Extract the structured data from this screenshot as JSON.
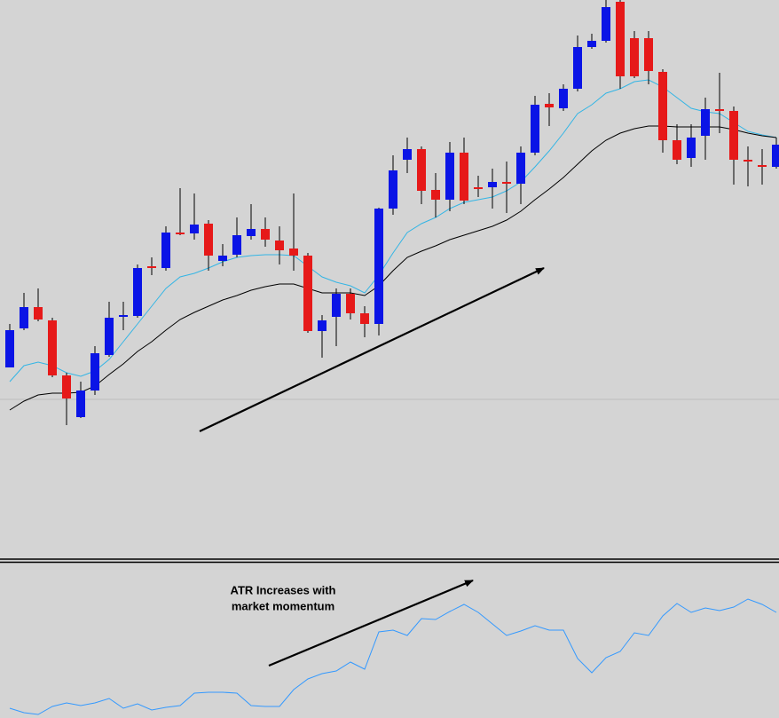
{
  "chart_data": [
    {
      "type": "candlestick",
      "ylim": [
        0,
        630
      ],
      "up_color": "#0a14e6",
      "down_color": "#e61919",
      "wick_color": "#000000",
      "level": 180,
      "level_color": "#bdbdbd",
      "open": [
        216,
        260,
        284,
        269,
        207,
        160,
        190,
        230,
        273,
        274,
        330,
        328,
        368,
        367,
        378,
        336,
        343,
        364,
        372,
        359,
        350,
        342,
        257,
        273,
        299,
        277,
        265,
        395,
        450,
        462,
        416,
        405,
        458,
        419,
        419,
        425,
        423,
        458,
        513,
        508,
        530,
        577,
        584,
        628,
        587,
        587,
        549,
        472,
        452,
        477,
        507,
        505,
        450,
        444,
        442
      ],
      "high": [
        265,
        300,
        305,
        272,
        210,
        200,
        240,
        290,
        290,
        332,
        340,
        375,
        418,
        412,
        382,
        355,
        385,
        400,
        385,
        375,
        412,
        345,
        275,
        305,
        305,
        285,
        396,
        455,
        475,
        465,
        435,
        470,
        475,
        432,
        440,
        448,
        465,
        522,
        525,
        535,
        590,
        592,
        630,
        630,
        595,
        595,
        552,
        490,
        490,
        520,
        548,
        510,
        465,
        462,
        475
      ],
      "low": [
        216,
        258,
        268,
        205,
        151,
        159,
        185,
        228,
        258,
        272,
        320,
        325,
        365,
        360,
        325,
        330,
        340,
        360,
        352,
        332,
        325,
        255,
        227,
        240,
        270,
        250,
        252,
        388,
        435,
        400,
        385,
        392,
        400,
        408,
        395,
        390,
        400,
        455,
        488,
        505,
        527,
        575,
        582,
        530,
        542,
        535,
        458,
        445,
        442,
        450,
        480,
        422,
        420,
        422,
        440
      ],
      "close": [
        258,
        284,
        270,
        207,
        181,
        190,
        232,
        272,
        275,
        328,
        328,
        368,
        366,
        377,
        342,
        342,
        365,
        372,
        360,
        348,
        342,
        257,
        269,
        299,
        277,
        265,
        395,
        438,
        462,
        415,
        405,
        458,
        404,
        417,
        425,
        423,
        458,
        512,
        509,
        530,
        577,
        584,
        622,
        544,
        544,
        550,
        472,
        450,
        475,
        507,
        505,
        450,
        448,
        442,
        467
      ],
      "overlays": [
        {
          "color": "#33b5e5",
          "values": [
            200,
            218,
            222,
            218,
            210,
            206,
            212,
            225,
            245,
            265,
            285,
            305,
            318,
            322,
            328,
            335,
            340,
            342,
            343,
            343,
            342,
            330,
            318,
            312,
            308,
            300,
            320,
            345,
            368,
            378,
            385,
            395,
            402,
            405,
            408,
            415,
            425,
            442,
            460,
            480,
            502,
            512,
            525,
            530,
            538,
            540,
            532,
            520,
            508,
            504,
            502,
            492,
            482,
            478,
            475
          ]
        },
        {
          "color": "#000000",
          "values": [
            168,
            178,
            185,
            187,
            187,
            188,
            195,
            208,
            220,
            234,
            245,
            258,
            270,
            278,
            285,
            292,
            297,
            303,
            307,
            310,
            310,
            305,
            300,
            300,
            300,
            297,
            308,
            325,
            340,
            347,
            353,
            360,
            365,
            370,
            375,
            382,
            392,
            405,
            417,
            430,
            445,
            460,
            472,
            480,
            485,
            488,
            488,
            487,
            487,
            487,
            487,
            484,
            480,
            477,
            475
          ]
        }
      ]
    },
    {
      "type": "line",
      "ylim": [
        0,
        174
      ],
      "color": "#3399ff",
      "annotation": [
        "ATR Increases with",
        "market momentum"
      ],
      "values": [
        11,
        6,
        4,
        13,
        17,
        14,
        17,
        22,
        11,
        16,
        9,
        12,
        14,
        28,
        29,
        29,
        28,
        14,
        13,
        13,
        32,
        44,
        50,
        53,
        63,
        55,
        97,
        99,
        93,
        112,
        111,
        120,
        128,
        119,
        106,
        93,
        98,
        104,
        99,
        99,
        67,
        51,
        68,
        75,
        96,
        93,
        115,
        129,
        119,
        124,
        121,
        125,
        134,
        128,
        119
      ]
    }
  ]
}
